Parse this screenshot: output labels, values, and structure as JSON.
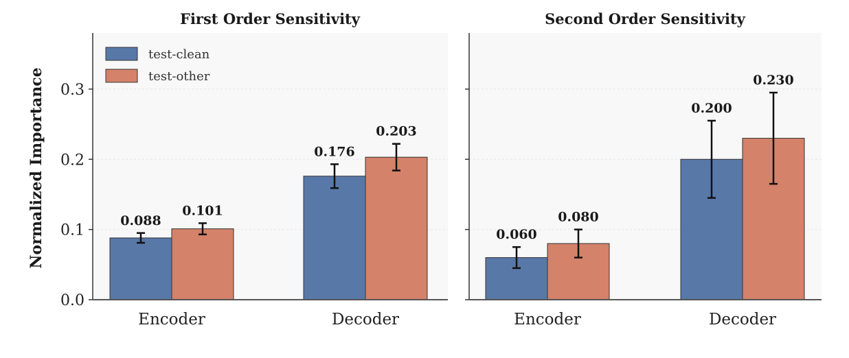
{
  "figure": {
    "ylabel": "Normalized Importance"
  },
  "chart_data": [
    {
      "type": "bar",
      "title": "First Order Sensitivity",
      "categories": [
        "Encoder",
        "Decoder"
      ],
      "series": [
        {
          "name": "test-clean",
          "values": [
            0.088,
            0.176
          ],
          "errors": [
            0.007,
            0.017
          ],
          "labels": [
            "0.088",
            "0.176"
          ],
          "color": "#5878a8"
        },
        {
          "name": "test-other",
          "values": [
            0.101,
            0.203
          ],
          "errors": [
            0.008,
            0.019
          ],
          "labels": [
            "0.101",
            "0.203"
          ],
          "color": "#d4826a"
        }
      ],
      "ylim": [
        0,
        0.38
      ],
      "yticks": [
        "0.0",
        "0.1",
        "0.2",
        "0.3"
      ],
      "legend": "top-left",
      "grid": true
    },
    {
      "type": "bar",
      "title": "Second Order Sensitivity",
      "categories": [
        "Encoder",
        "Decoder"
      ],
      "series": [
        {
          "name": "test-clean",
          "values": [
            0.06,
            0.2
          ],
          "errors": [
            0.015,
            0.055
          ],
          "labels": [
            "0.060",
            "0.200"
          ],
          "color": "#5878a8"
        },
        {
          "name": "test-other",
          "values": [
            0.08,
            0.23
          ],
          "errors": [
            0.02,
            0.065
          ],
          "labels": [
            "0.080",
            "0.230"
          ],
          "color": "#d4826a"
        }
      ],
      "ylim": [
        0,
        0.38
      ],
      "grid": true
    }
  ]
}
